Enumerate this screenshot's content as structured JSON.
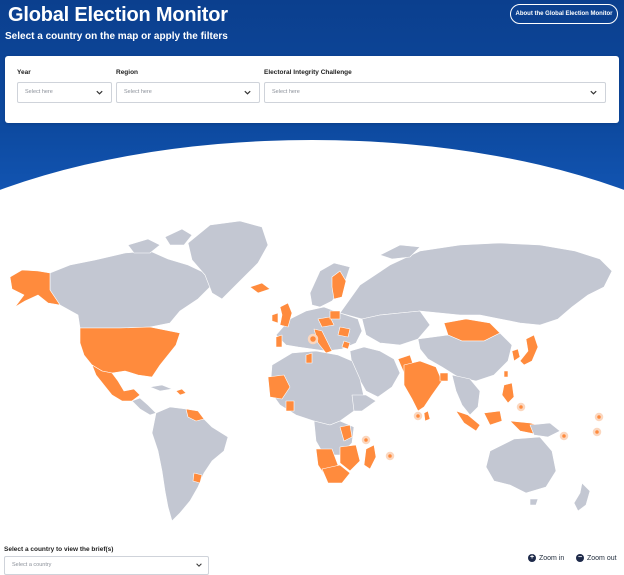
{
  "header": {
    "title": "Global Election Monitor",
    "subtitle": "Select a country on the map or apply the filters",
    "about_button": "About the Global Election Monitor"
  },
  "filters": [
    {
      "label": "Year",
      "placeholder": "Select here"
    },
    {
      "label": "Region",
      "placeholder": "Select here"
    },
    {
      "label": "Electoral Integrity Challenge",
      "placeholder": "Select here"
    }
  ],
  "country_selector": {
    "label": "Select a country to view the brief(s)",
    "placeholder": "Select a country"
  },
  "zoom": {
    "in_label": "Zoom in",
    "out_label": "Zoom out"
  },
  "colors": {
    "header_blue": "#0d4aa0",
    "land_gray": "#c3c7d2",
    "highlight_orange": "#ff8b3d"
  },
  "icons": {
    "chevron": "chevron-down-icon",
    "zoom_in": "plus-icon",
    "zoom_out": "minus-icon"
  }
}
